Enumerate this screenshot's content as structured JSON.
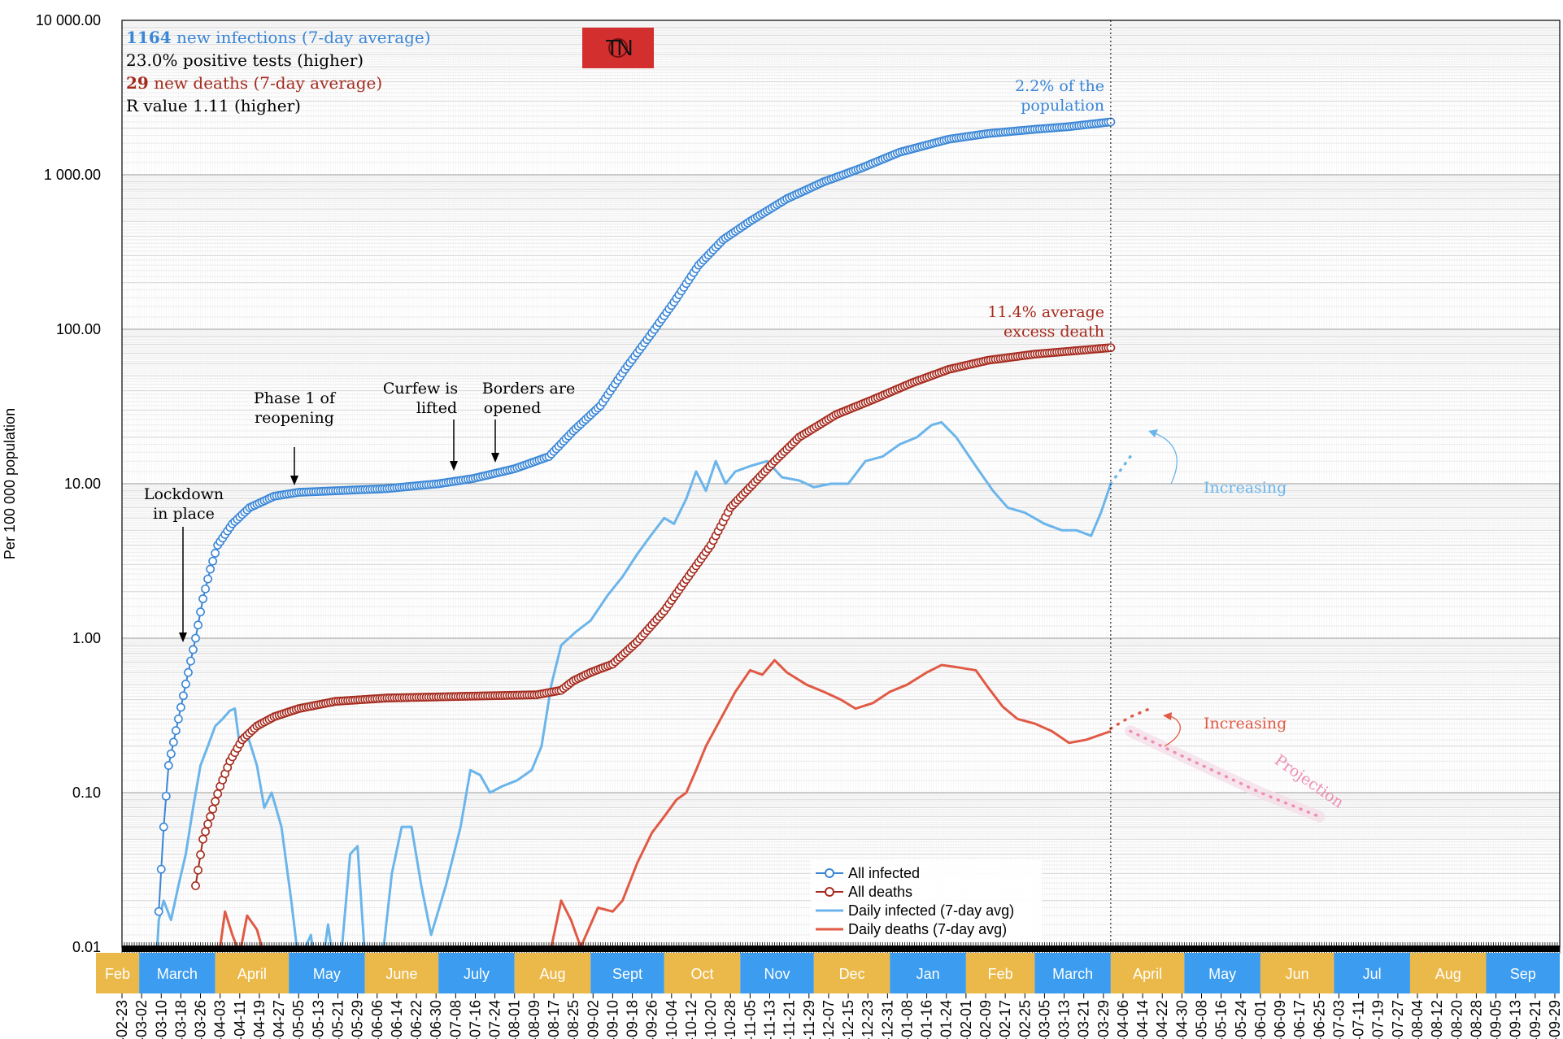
{
  "stats": {
    "infections_value": "1164",
    "infections_text": " new infections (7-day average)",
    "positive_tests": "23.0% positive tests (higher)",
    "deaths_value": "29",
    "deaths_text": " new deaths (7-day average)",
    "r_value": "R value 1.11 (higher)"
  },
  "badge": {
    "text": "TN",
    "color": "#d32f2f"
  },
  "annotations": {
    "lockdown": [
      "Lockdown",
      "in place"
    ],
    "phase1": [
      "Phase 1 of",
      "reopening"
    ],
    "curfew": [
      "Curfew is",
      "lifted"
    ],
    "borders": [
      "Borders are",
      "opened"
    ],
    "pop_share": [
      "2.2% of the",
      "population"
    ],
    "excess_death": [
      "11.4% average",
      "excess death"
    ],
    "increasing_infected": "Increasing",
    "increasing_deaths": "Increasing",
    "projection": "Projection"
  },
  "legend": {
    "all_infected": "All infected",
    "all_deaths": "All deaths",
    "daily_infected": "Daily infected (7-day avg)",
    "daily_deaths": "Daily deaths (7-day avg)"
  },
  "colors": {
    "infected_cum": "#3a86d6",
    "infected_daily": "#6bb5ea",
    "deaths_cum": "#a52a1e",
    "deaths_daily": "#e05a45",
    "projection": "#ee8fb4",
    "month_blue": "#3b9cf0",
    "month_gold": "#ebb94a"
  },
  "months": [
    {
      "label": "Feb",
      "color": "gold"
    },
    {
      "label": "March",
      "color": "blue"
    },
    {
      "label": "April",
      "color": "gold"
    },
    {
      "label": "May",
      "color": "blue"
    },
    {
      "label": "June",
      "color": "gold"
    },
    {
      "label": "July",
      "color": "blue"
    },
    {
      "label": "Aug",
      "color": "gold"
    },
    {
      "label": "Sept",
      "color": "blue"
    },
    {
      "label": "Oct",
      "color": "gold"
    },
    {
      "label": "Nov",
      "color": "blue"
    },
    {
      "label": "Dec",
      "color": "gold"
    },
    {
      "label": "Jan",
      "color": "blue"
    },
    {
      "label": "Feb",
      "color": "gold"
    },
    {
      "label": "March",
      "color": "blue"
    },
    {
      "label": "April",
      "color": "gold"
    },
    {
      "label": "May",
      "color": "blue"
    },
    {
      "label": "Jun",
      "color": "gold"
    },
    {
      "label": "Jul",
      "color": "blue"
    },
    {
      "label": "Aug",
      "color": "gold"
    },
    {
      "label": "Sep",
      "color": "blue"
    }
  ],
  "chart_data": {
    "type": "line",
    "ylabel": "Per 100 000 population",
    "yscale": "log",
    "ylim": [
      0.01,
      10000
    ],
    "ytick_labels": [
      "0.01",
      "0.10",
      "1.00",
      "10.00",
      "100.00",
      "1 000.00",
      "10 000.00"
    ],
    "xtick_labels": [
      "02-23",
      "03-02",
      "03-10",
      "03-18",
      "03-26",
      "04-03",
      "04-11",
      "04-19",
      "04-27",
      "05-05",
      "05-13",
      "05-21",
      "05-29",
      "06-06",
      "06-14",
      "06-22",
      "06-30",
      "07-08",
      "07-16",
      "07-24",
      "08-01",
      "08-09",
      "08-17",
      "08-25",
      "09-02",
      "09-10",
      "09-18",
      "09-26",
      "10-04",
      "10-12",
      "10-20",
      "10-28",
      "11-05",
      "11-13",
      "11-21",
      "11-29",
      "12-07",
      "12-15",
      "12-23",
      "12-31",
      "01-08",
      "01-16",
      "01-24",
      "02-01",
      "02-09",
      "02-17",
      "02-25",
      "03-05",
      "03-13",
      "03-21",
      "03-29",
      "04-06",
      "04-14",
      "04-22",
      "04-30",
      "05-08",
      "05-16",
      "05-24",
      "06-01",
      "06-09",
      "06-17",
      "06-25",
      "07-03",
      "07-11",
      "07-19",
      "07-27",
      "08-04",
      "08-12",
      "08-20",
      "08-28",
      "09-05",
      "09-13",
      "09-21",
      "09-29"
    ],
    "series": [
      {
        "name": "All infected",
        "style": "line-circles",
        "points": [
          [
            "2020-03-09",
            0.017
          ],
          [
            "2020-03-11",
            0.06
          ],
          [
            "2020-03-13",
            0.15
          ],
          [
            "2020-03-17",
            0.3
          ],
          [
            "2020-03-21",
            0.6
          ],
          [
            "2020-03-24",
            1.0
          ],
          [
            "2020-03-27",
            1.8
          ],
          [
            "2020-03-30",
            2.8
          ],
          [
            "2020-04-02",
            4.0
          ],
          [
            "2020-04-08",
            5.5
          ],
          [
            "2020-04-15",
            7.0
          ],
          [
            "2020-04-25",
            8.3
          ],
          [
            "2020-05-05",
            8.8
          ],
          [
            "2020-05-20",
            9.0
          ],
          [
            "2020-06-10",
            9.3
          ],
          [
            "2020-07-01",
            10.0
          ],
          [
            "2020-07-15",
            10.8
          ],
          [
            "2020-08-01",
            12.5
          ],
          [
            "2020-08-15",
            15.0
          ],
          [
            "2020-08-25",
            22.0
          ],
          [
            "2020-09-05",
            32.0
          ],
          [
            "2020-09-15",
            55.0
          ],
          [
            "2020-09-25",
            90.0
          ],
          [
            "2020-10-05",
            150.0
          ],
          [
            "2020-10-15",
            260.0
          ],
          [
            "2020-10-25",
            380.0
          ],
          [
            "2020-11-05",
            500.0
          ],
          [
            "2020-11-20",
            700.0
          ],
          [
            "2020-12-05",
            900.0
          ],
          [
            "2020-12-20",
            1100.0
          ],
          [
            "2021-01-05",
            1400.0
          ],
          [
            "2021-01-25",
            1700.0
          ],
          [
            "2021-02-10",
            1850.0
          ],
          [
            "2021-03-01",
            1970.0
          ],
          [
            "2021-03-15",
            2050.0
          ],
          [
            "2021-04-01",
            2200.0
          ]
        ]
      },
      {
        "name": "All deaths",
        "style": "line-circles",
        "points": [
          [
            "2020-03-24",
            0.025
          ],
          [
            "2020-03-27",
            0.05
          ],
          [
            "2020-03-30",
            0.07
          ],
          [
            "2020-04-03",
            0.11
          ],
          [
            "2020-04-07",
            0.16
          ],
          [
            "2020-04-12",
            0.22
          ],
          [
            "2020-04-18",
            0.27
          ],
          [
            "2020-04-25",
            0.31
          ],
          [
            "2020-05-05",
            0.35
          ],
          [
            "2020-05-20",
            0.39
          ],
          [
            "2020-06-10",
            0.41
          ],
          [
            "2020-07-10",
            0.42
          ],
          [
            "2020-08-10",
            0.43
          ],
          [
            "2020-08-20",
            0.46
          ],
          [
            "2020-08-25",
            0.53
          ],
          [
            "2020-09-01",
            0.6
          ],
          [
            "2020-09-10",
            0.68
          ],
          [
            "2020-09-20",
            0.95
          ],
          [
            "2020-10-01",
            1.5
          ],
          [
            "2020-10-10",
            2.4
          ],
          [
            "2020-10-20",
            4.0
          ],
          [
            "2020-10-28",
            7.0
          ],
          [
            "2020-11-05",
            9.5
          ],
          [
            "2020-11-15",
            14.0
          ],
          [
            "2020-11-25",
            20.0
          ],
          [
            "2020-12-10",
            28.0
          ],
          [
            "2020-12-25",
            35.0
          ],
          [
            "2021-01-10",
            45.0
          ],
          [
            "2021-01-25",
            55.0
          ],
          [
            "2021-02-10",
            63.0
          ],
          [
            "2021-03-01",
            69.0
          ],
          [
            "2021-03-15",
            72.0
          ],
          [
            "2021-04-01",
            76.0
          ]
        ]
      },
      {
        "name": "Daily infected (7-day avg)",
        "style": "line",
        "points": [
          [
            "2020-03-07",
            0.004
          ],
          [
            "2020-03-09",
            0.015
          ],
          [
            "2020-03-11",
            0.02
          ],
          [
            "2020-03-14",
            0.015
          ],
          [
            "2020-03-17",
            0.025
          ],
          [
            "2020-03-20",
            0.04
          ],
          [
            "2020-03-23",
            0.08
          ],
          [
            "2020-03-26",
            0.15
          ],
          [
            "2020-03-29",
            0.2
          ],
          [
            "2020-04-01",
            0.27
          ],
          [
            "2020-04-04",
            0.3
          ],
          [
            "2020-04-07",
            0.34
          ],
          [
            "2020-04-09",
            0.35
          ],
          [
            "2020-04-11",
            0.2
          ],
          [
            "2020-04-14",
            0.24
          ],
          [
            "2020-04-18",
            0.15
          ],
          [
            "2020-04-21",
            0.08
          ],
          [
            "2020-04-24",
            0.1
          ],
          [
            "2020-04-28",
            0.06
          ],
          [
            "2020-05-02",
            0.02
          ],
          [
            "2020-05-05",
            0.008
          ],
          [
            "2020-05-10",
            0.012
          ],
          [
            "2020-05-13",
            0.005
          ],
          [
            "2020-05-17",
            0.014
          ],
          [
            "2020-05-21",
            0.005
          ],
          [
            "2020-05-26",
            0.04
          ],
          [
            "2020-05-29",
            0.045
          ],
          [
            "2020-06-02",
            0.005
          ],
          [
            "2020-06-08",
            0.008
          ],
          [
            "2020-06-12",
            0.03
          ],
          [
            "2020-06-16",
            0.06
          ],
          [
            "2020-06-20",
            0.06
          ],
          [
            "2020-06-24",
            0.025
          ],
          [
            "2020-06-28",
            0.012
          ],
          [
            "2020-07-04",
            0.025
          ],
          [
            "2020-07-10",
            0.06
          ],
          [
            "2020-07-14",
            0.14
          ],
          [
            "2020-07-18",
            0.13
          ],
          [
            "2020-07-22",
            0.1
          ],
          [
            "2020-07-27",
            0.11
          ],
          [
            "2020-08-02",
            0.12
          ],
          [
            "2020-08-08",
            0.14
          ],
          [
            "2020-08-12",
            0.2
          ],
          [
            "2020-08-16",
            0.5
          ],
          [
            "2020-08-20",
            0.9
          ],
          [
            "2020-08-26",
            1.1
          ],
          [
            "2020-09-01",
            1.3
          ],
          [
            "2020-09-08",
            1.9
          ],
          [
            "2020-09-14",
            2.5
          ],
          [
            "2020-09-20",
            3.5
          ],
          [
            "2020-09-25",
            4.5
          ],
          [
            "2020-10-01",
            6.0
          ],
          [
            "2020-10-05",
            5.5
          ],
          [
            "2020-10-10",
            8.0
          ],
          [
            "2020-10-14",
            12.0
          ],
          [
            "2020-10-18",
            9.0
          ],
          [
            "2020-10-22",
            14.0
          ],
          [
            "2020-10-26",
            10.0
          ],
          [
            "2020-10-30",
            12.0
          ],
          [
            "2020-11-05",
            13.0
          ],
          [
            "2020-11-12",
            14.0
          ],
          [
            "2020-11-18",
            11.0
          ],
          [
            "2020-11-25",
            10.5
          ],
          [
            "2020-12-01",
            9.5
          ],
          [
            "2020-12-08",
            10.0
          ],
          [
            "2020-12-15",
            10.0
          ],
          [
            "2020-12-22",
            14.0
          ],
          [
            "2020-12-29",
            15.0
          ],
          [
            "2021-01-05",
            18.0
          ],
          [
            "2021-01-12",
            20.0
          ],
          [
            "2021-01-18",
            24.0
          ],
          [
            "2021-01-22",
            25.0
          ],
          [
            "2021-01-28",
            20.0
          ],
          [
            "2021-02-05",
            13.0
          ],
          [
            "2021-02-12",
            9.0
          ],
          [
            "2021-02-18",
            7.0
          ],
          [
            "2021-02-25",
            6.5
          ],
          [
            "2021-03-05",
            5.5
          ],
          [
            "2021-03-12",
            5.0
          ],
          [
            "2021-03-18",
            5.0
          ],
          [
            "2021-03-24",
            4.6
          ],
          [
            "2021-03-28",
            6.5
          ],
          [
            "2021-04-01",
            10.0
          ]
        ]
      },
      {
        "name": "Daily deaths (7-day avg)",
        "style": "line",
        "points": [
          [
            "2020-04-03",
            0.01
          ],
          [
            "2020-04-05",
            0.017
          ],
          [
            "2020-04-08",
            0.012
          ],
          [
            "2020-04-11",
            0.009
          ],
          [
            "2020-04-14",
            0.016
          ],
          [
            "2020-04-18",
            0.013
          ],
          [
            "2020-04-20",
            0.01
          ],
          [
            "2020-08-16",
            0.01
          ],
          [
            "2020-08-20",
            0.02
          ],
          [
            "2020-08-24",
            0.015
          ],
          [
            "2020-08-28",
            0.01
          ],
          [
            "2020-09-04",
            0.018
          ],
          [
            "2020-09-10",
            0.017
          ],
          [
            "2020-09-14",
            0.02
          ],
          [
            "2020-09-20",
            0.035
          ],
          [
            "2020-09-26",
            0.055
          ],
          [
            "2020-10-01",
            0.07
          ],
          [
            "2020-10-06",
            0.09
          ],
          [
            "2020-10-10",
            0.1
          ],
          [
            "2020-10-14",
            0.14
          ],
          [
            "2020-10-18",
            0.2
          ],
          [
            "2020-10-24",
            0.3
          ],
          [
            "2020-10-30",
            0.45
          ],
          [
            "2020-11-05",
            0.62
          ],
          [
            "2020-11-10",
            0.58
          ],
          [
            "2020-11-15",
            0.72
          ],
          [
            "2020-11-20",
            0.6
          ],
          [
            "2020-11-28",
            0.5
          ],
          [
            "2020-12-05",
            0.45
          ],
          [
            "2020-12-12",
            0.4
          ],
          [
            "2020-12-18",
            0.35
          ],
          [
            "2020-12-25",
            0.38
          ],
          [
            "2021-01-01",
            0.45
          ],
          [
            "2021-01-08",
            0.5
          ],
          [
            "2021-01-16",
            0.6
          ],
          [
            "2021-01-22",
            0.67
          ],
          [
            "2021-01-28",
            0.65
          ],
          [
            "2021-02-05",
            0.62
          ],
          [
            "2021-02-10",
            0.48
          ],
          [
            "2021-02-16",
            0.36
          ],
          [
            "2021-02-22",
            0.3
          ],
          [
            "2021-03-01",
            0.28
          ],
          [
            "2021-03-08",
            0.25
          ],
          [
            "2021-03-15",
            0.21
          ],
          [
            "2021-03-22",
            0.22
          ],
          [
            "2021-04-01",
            0.25
          ]
        ]
      }
    ],
    "projections": [
      {
        "name": "Daily infected projection",
        "points": [
          [
            "2021-04-01",
            10.0
          ],
          [
            "2021-04-09",
            15.0
          ]
        ]
      },
      {
        "name": "Daily deaths projection (rising)",
        "points": [
          [
            "2021-04-01",
            0.26
          ],
          [
            "2021-04-09",
            0.31
          ],
          [
            "2021-04-17",
            0.35
          ]
        ]
      },
      {
        "name": "Daily deaths projection (falling)",
        "points": [
          [
            "2021-04-09",
            0.25
          ],
          [
            "2021-05-01",
            0.17
          ],
          [
            "2021-06-01",
            0.1
          ],
          [
            "2021-06-25",
            0.07
          ]
        ]
      }
    ],
    "x_start": "2020-02-23",
    "x_end": "2021-10-01",
    "current_date_marker": "2021-04-01",
    "grid": true,
    "legend_position": "bottom-center"
  }
}
